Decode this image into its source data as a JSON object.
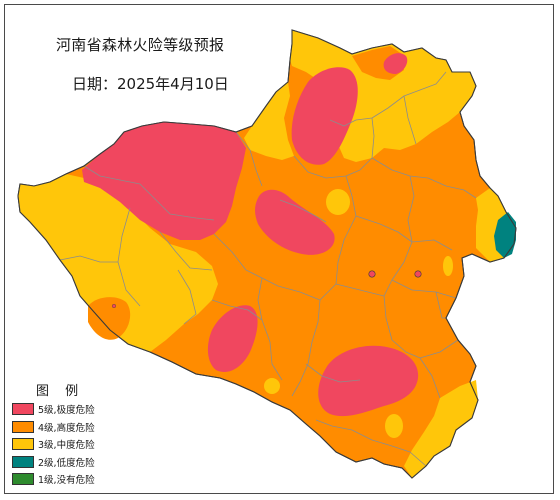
{
  "title": "河南省森林火险等级预报",
  "date": "日期：2025年4月10日",
  "legend": {
    "title": "图 例",
    "items": [
      {
        "label": "5级,极度危险",
        "color": "#F0475F"
      },
      {
        "label": "4级,高度危险",
        "color": "#FF8C00"
      },
      {
        "label": "3级,中度危险",
        "color": "#FFC60A"
      },
      {
        "label": "2级,低度危险",
        "color": "#00827F"
      },
      {
        "label": "1级,没有危险",
        "color": "#2E8B2E"
      }
    ]
  }
}
